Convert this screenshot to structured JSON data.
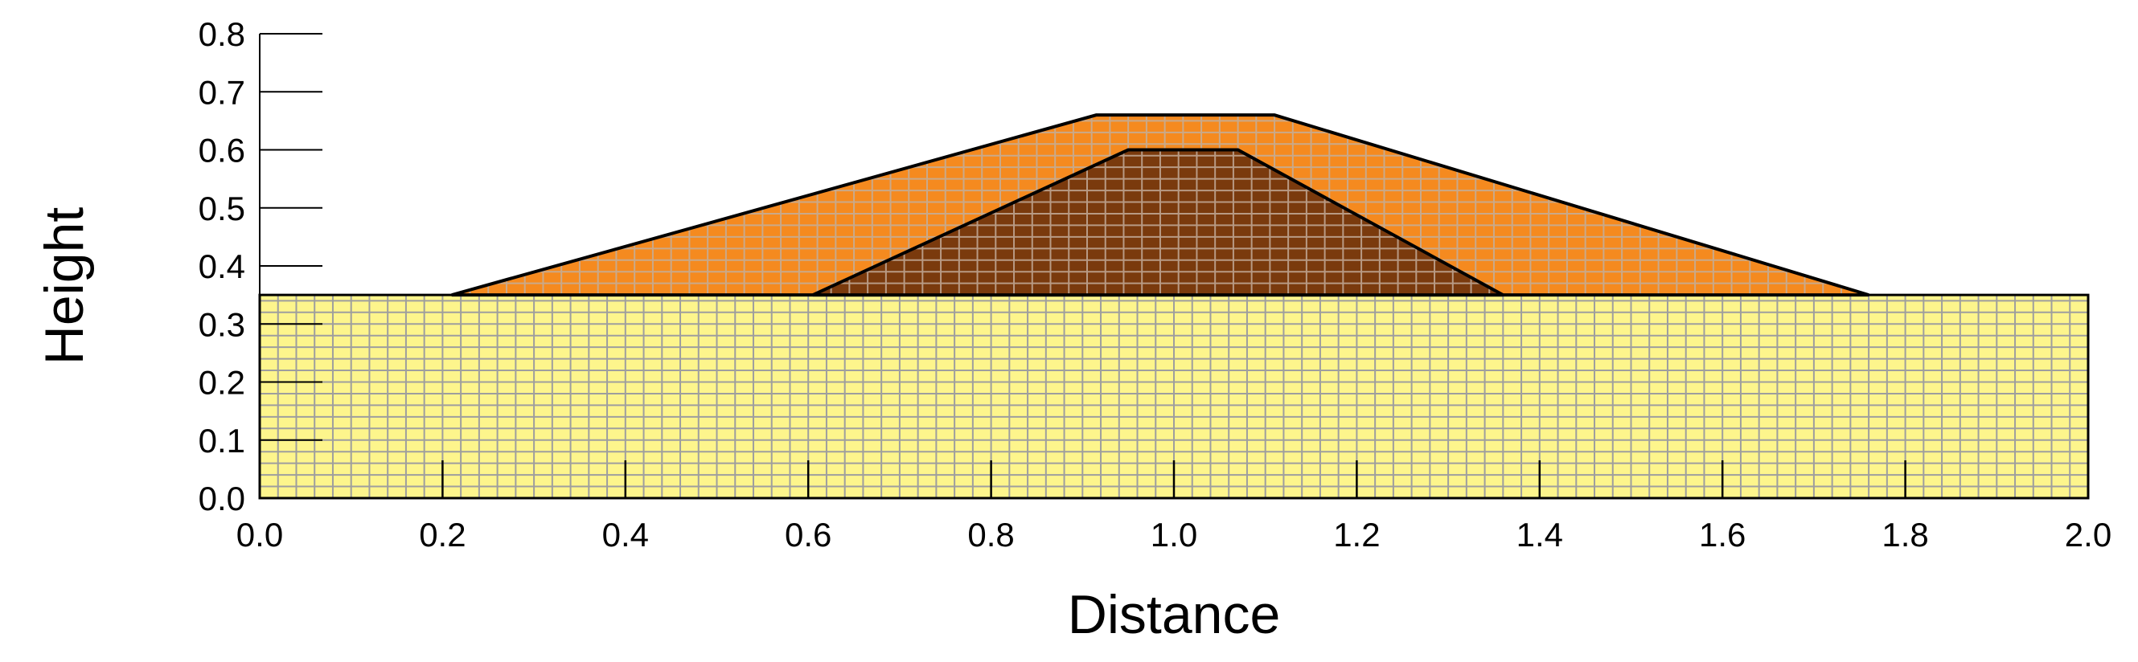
{
  "chart_data": {
    "type": "area",
    "title": "",
    "xlabel": "Distance",
    "ylabel": "Height",
    "xlim": [
      0.0,
      2.0
    ],
    "ylim": [
      0.0,
      0.8
    ],
    "x_ticks": [
      "0.0",
      "0.2",
      "0.4",
      "0.6",
      "0.8",
      "1.0",
      "1.2",
      "1.4",
      "1.6",
      "1.8",
      "2.0"
    ],
    "y_ticks": [
      "0.0",
      "0.1",
      "0.2",
      "0.3",
      "0.4",
      "0.5",
      "0.6",
      "0.7",
      "0.8"
    ],
    "grid": false,
    "legend": "none",
    "regions": [
      {
        "id": "foundation",
        "fill": "#fdf58c",
        "mesh_color": "#9e9e9e",
        "mesh_dx": 0.02,
        "mesh_dy": 0.02,
        "points": [
          [
            0.0,
            0.0
          ],
          [
            2.0,
            0.0
          ],
          [
            2.0,
            0.35
          ],
          [
            0.0,
            0.35
          ]
        ]
      },
      {
        "id": "embankment-shell",
        "fill": "#f58a1f",
        "mesh_color": "#c9a98a",
        "mesh_dx": 0.02,
        "mesh_dy": 0.02,
        "points": [
          [
            0.21,
            0.35
          ],
          [
            0.915,
            0.66
          ],
          [
            1.11,
            0.66
          ],
          [
            1.76,
            0.35
          ]
        ]
      },
      {
        "id": "embankment-core",
        "fill": "#7a3a0d",
        "mesh_color": "#b89a84",
        "mesh_dx": 0.02,
        "mesh_dy": 0.02,
        "points": [
          [
            0.605,
            0.35
          ],
          [
            0.95,
            0.6
          ],
          [
            1.07,
            0.6
          ],
          [
            1.36,
            0.35
          ]
        ]
      }
    ]
  }
}
